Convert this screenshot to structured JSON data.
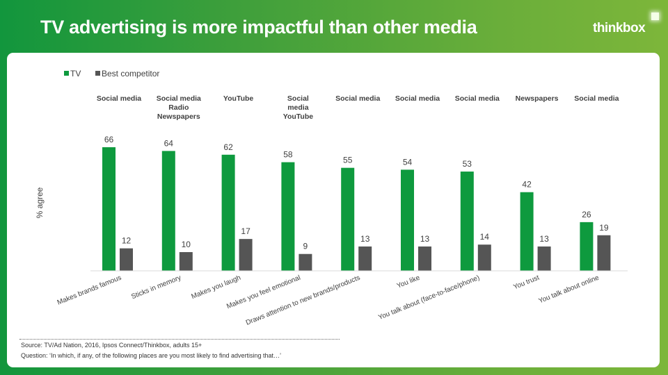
{
  "header": {
    "title": "TV advertising is more impactful than other media",
    "logo": "thinkbox"
  },
  "footer": {
    "source": "Source: TV/Ad Nation, 2016,  Ipsos Connect/Thinkbox, adults 15+",
    "question": "Question: ‘In  which, if any, of the following places are you most likely to  find advertising that…’"
  },
  "colors": {
    "tv": "#0e9a3e",
    "competitor": "#555555",
    "label": "#404040"
  },
  "chart_data": {
    "type": "bar",
    "title": "TV advertising is more impactful than other media",
    "xlabel": "",
    "ylabel": "% agree",
    "ylim": [
      0,
      70
    ],
    "grid": false,
    "legend": {
      "position": "top-left",
      "entries": [
        "TV",
        "Best competitor"
      ]
    },
    "categories": [
      "Makes brands famous",
      "Sticks in memory",
      "Makes you laugh",
      "Makes you feel emotional",
      "Draws attention to new brands/products",
      "You like",
      "You talk about (face-to-face/phone)",
      "You trust",
      "You talk about  online"
    ],
    "competitor_names": [
      [
        "Social media"
      ],
      [
        "Social media",
        "Radio",
        "Newspapers"
      ],
      [
        "YouTube"
      ],
      [
        "Social",
        "media",
        "YouTube"
      ],
      [
        "Social media"
      ],
      [
        "Social media"
      ],
      [
        "Social media"
      ],
      [
        "Newspapers"
      ],
      [
        "Social media"
      ]
    ],
    "series": [
      {
        "name": "TV",
        "values": [
          66,
          64,
          62,
          58,
          55,
          54,
          53,
          42,
          26
        ]
      },
      {
        "name": "Best competitor",
        "values": [
          12,
          10,
          17,
          9,
          13,
          13,
          14,
          13,
          19
        ]
      }
    ]
  }
}
